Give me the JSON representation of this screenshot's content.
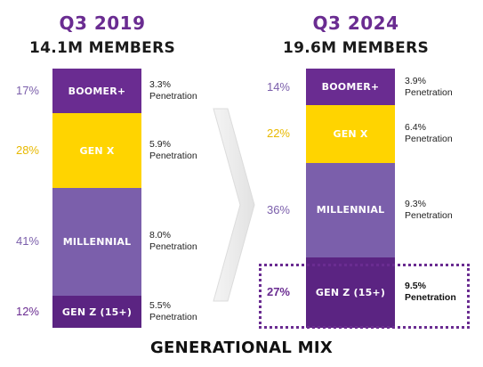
{
  "footer_title": "GENERATIONAL MIX",
  "colors": {
    "boomer": "#6a2c91",
    "genx": "#ffd400",
    "millennial": "#7b5fab",
    "genz": "#5b2482",
    "pct_purple": "#7b5fab",
    "pct_yellow": "#e8b900",
    "pct_dark": "#6a2c91"
  },
  "chart_data": {
    "type": "bar",
    "stacked": true,
    "categories": [
      "BOOMER+",
      "GEN X",
      "MILLENNIAL",
      "GEN Z (15+)"
    ],
    "title": "GENERATIONAL MIX",
    "columns": [
      {
        "period": "Q3 2019",
        "members": "14.1M MEMBERS",
        "segments": [
          {
            "label": "BOOMER+",
            "share": 17,
            "share_label": "17%",
            "penetration_value": "3.3%",
            "penetration_text": "Penetration"
          },
          {
            "label": "GEN X",
            "share": 28,
            "share_label": "28%",
            "penetration_value": "5.9%",
            "penetration_text": "Penetration"
          },
          {
            "label": "MILLENNIAL",
            "share": 41,
            "share_label": "41%",
            "penetration_value": "8.0%",
            "penetration_text": "Penetration"
          },
          {
            "label": "GEN Z (15+)",
            "share": 12,
            "share_label": "12%",
            "penetration_value": "5.5%",
            "penetration_text": "Penetration"
          }
        ]
      },
      {
        "period": "Q3 2024",
        "members": "19.6M MEMBERS",
        "segments": [
          {
            "label": "BOOMER+",
            "share": 14,
            "share_label": "14%",
            "penetration_value": "3.9%",
            "penetration_text": "Penetration"
          },
          {
            "label": "GEN X",
            "share": 22,
            "share_label": "22%",
            "penetration_value": "6.4%",
            "penetration_text": "Penetration"
          },
          {
            "label": "MILLENNIAL",
            "share": 36,
            "share_label": "36%",
            "penetration_value": "9.3%",
            "penetration_text": "Penetration"
          },
          {
            "label": "GEN Z (15+)",
            "share": 27,
            "share_label": "27%",
            "penetration_value": "9.5%",
            "penetration_text": "Penetration",
            "highlighted": true
          }
        ]
      }
    ]
  }
}
